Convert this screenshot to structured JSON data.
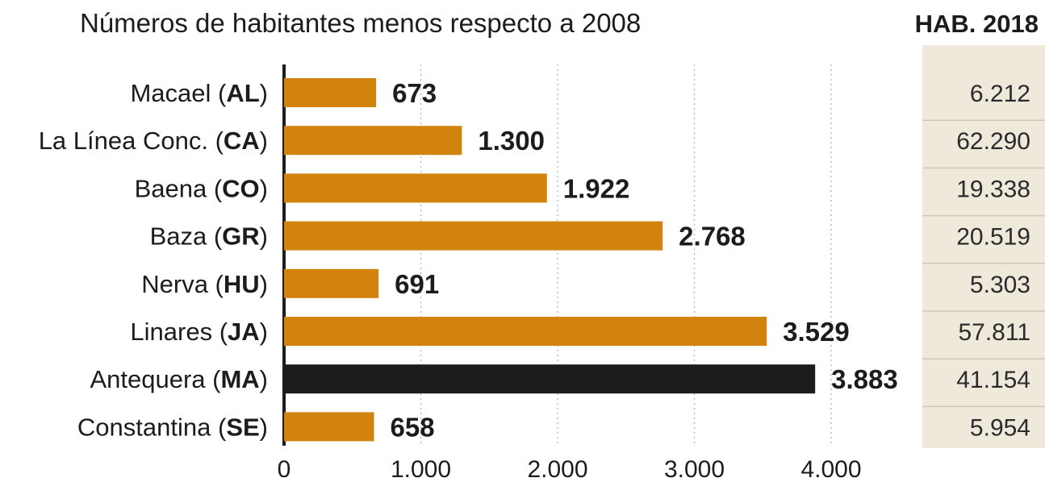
{
  "chart_data": {
    "type": "bar",
    "orientation": "horizontal",
    "title": "Números de habitantes menos respecto a 2008",
    "table_header": "HAB. 2018",
    "categories": [
      {
        "name": "Macael",
        "code": "AL"
      },
      {
        "name": "La Línea Conc.",
        "code": "CA"
      },
      {
        "name": "Baena",
        "code": "CO"
      },
      {
        "name": "Baza",
        "code": "GR"
      },
      {
        "name": "Nerva",
        "code": "HU"
      },
      {
        "name": "Linares",
        "code": "JA"
      },
      {
        "name": "Antequera",
        "code": "MA"
      },
      {
        "name": "Constantina",
        "code": "SE"
      }
    ],
    "values": [
      673,
      1300,
      1922,
      2768,
      691,
      3529,
      3883,
      658
    ],
    "value_labels": [
      "673",
      "1.300",
      "1.922",
      "2.768",
      "691",
      "3.529",
      "3.883",
      "658"
    ],
    "hab_2018": [
      "6.212",
      "62.290",
      "19.338",
      "20.519",
      "5.303",
      "57.811",
      "41.154",
      "5.954"
    ],
    "xlim": [
      0,
      4000
    ],
    "xticks": [
      0,
      1000,
      2000,
      3000,
      4000
    ],
    "xtick_labels": [
      "0",
      "1.000",
      "2.000",
      "3.000",
      "4.000"
    ],
    "grid": true,
    "colors": {
      "bar": "#d1830d",
      "highlight_bar": "#1c1b1d",
      "table_bg": "#efe9dc",
      "grid": "#b5b5b5",
      "axis": "#1c1c1c",
      "separator": "#cfc8b8"
    },
    "highlight_index": 6
  }
}
